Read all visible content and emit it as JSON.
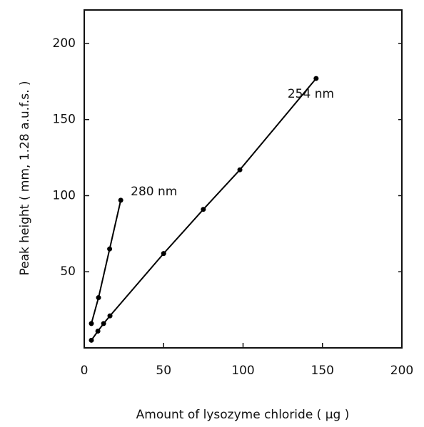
{
  "chart_data": {
    "type": "scatter-line",
    "x_label": "Amount of lysozyme chloride ( µg )",
    "y_label": "Peak height ( mm, 1.28 a.u.f.s. )",
    "xlim": [
      0,
      200
    ],
    "ylim": [
      0,
      222
    ],
    "xticks": [
      0,
      50,
      100,
      150,
      200
    ],
    "yticks": [
      50,
      100,
      150,
      200
    ],
    "series": [
      {
        "name": "280 nm",
        "color": "#000000",
        "x": [
          4.5,
          9,
          16,
          23
        ],
        "values": [
          16,
          33,
          65,
          97
        ]
      },
      {
        "name": "254 nm",
        "color": "#000000",
        "x": [
          4.5,
          8.6,
          12.2,
          16.2,
          50,
          75,
          98,
          146
        ],
        "values": [
          5,
          11,
          16,
          21,
          62,
          91,
          117,
          177
        ]
      }
    ]
  }
}
